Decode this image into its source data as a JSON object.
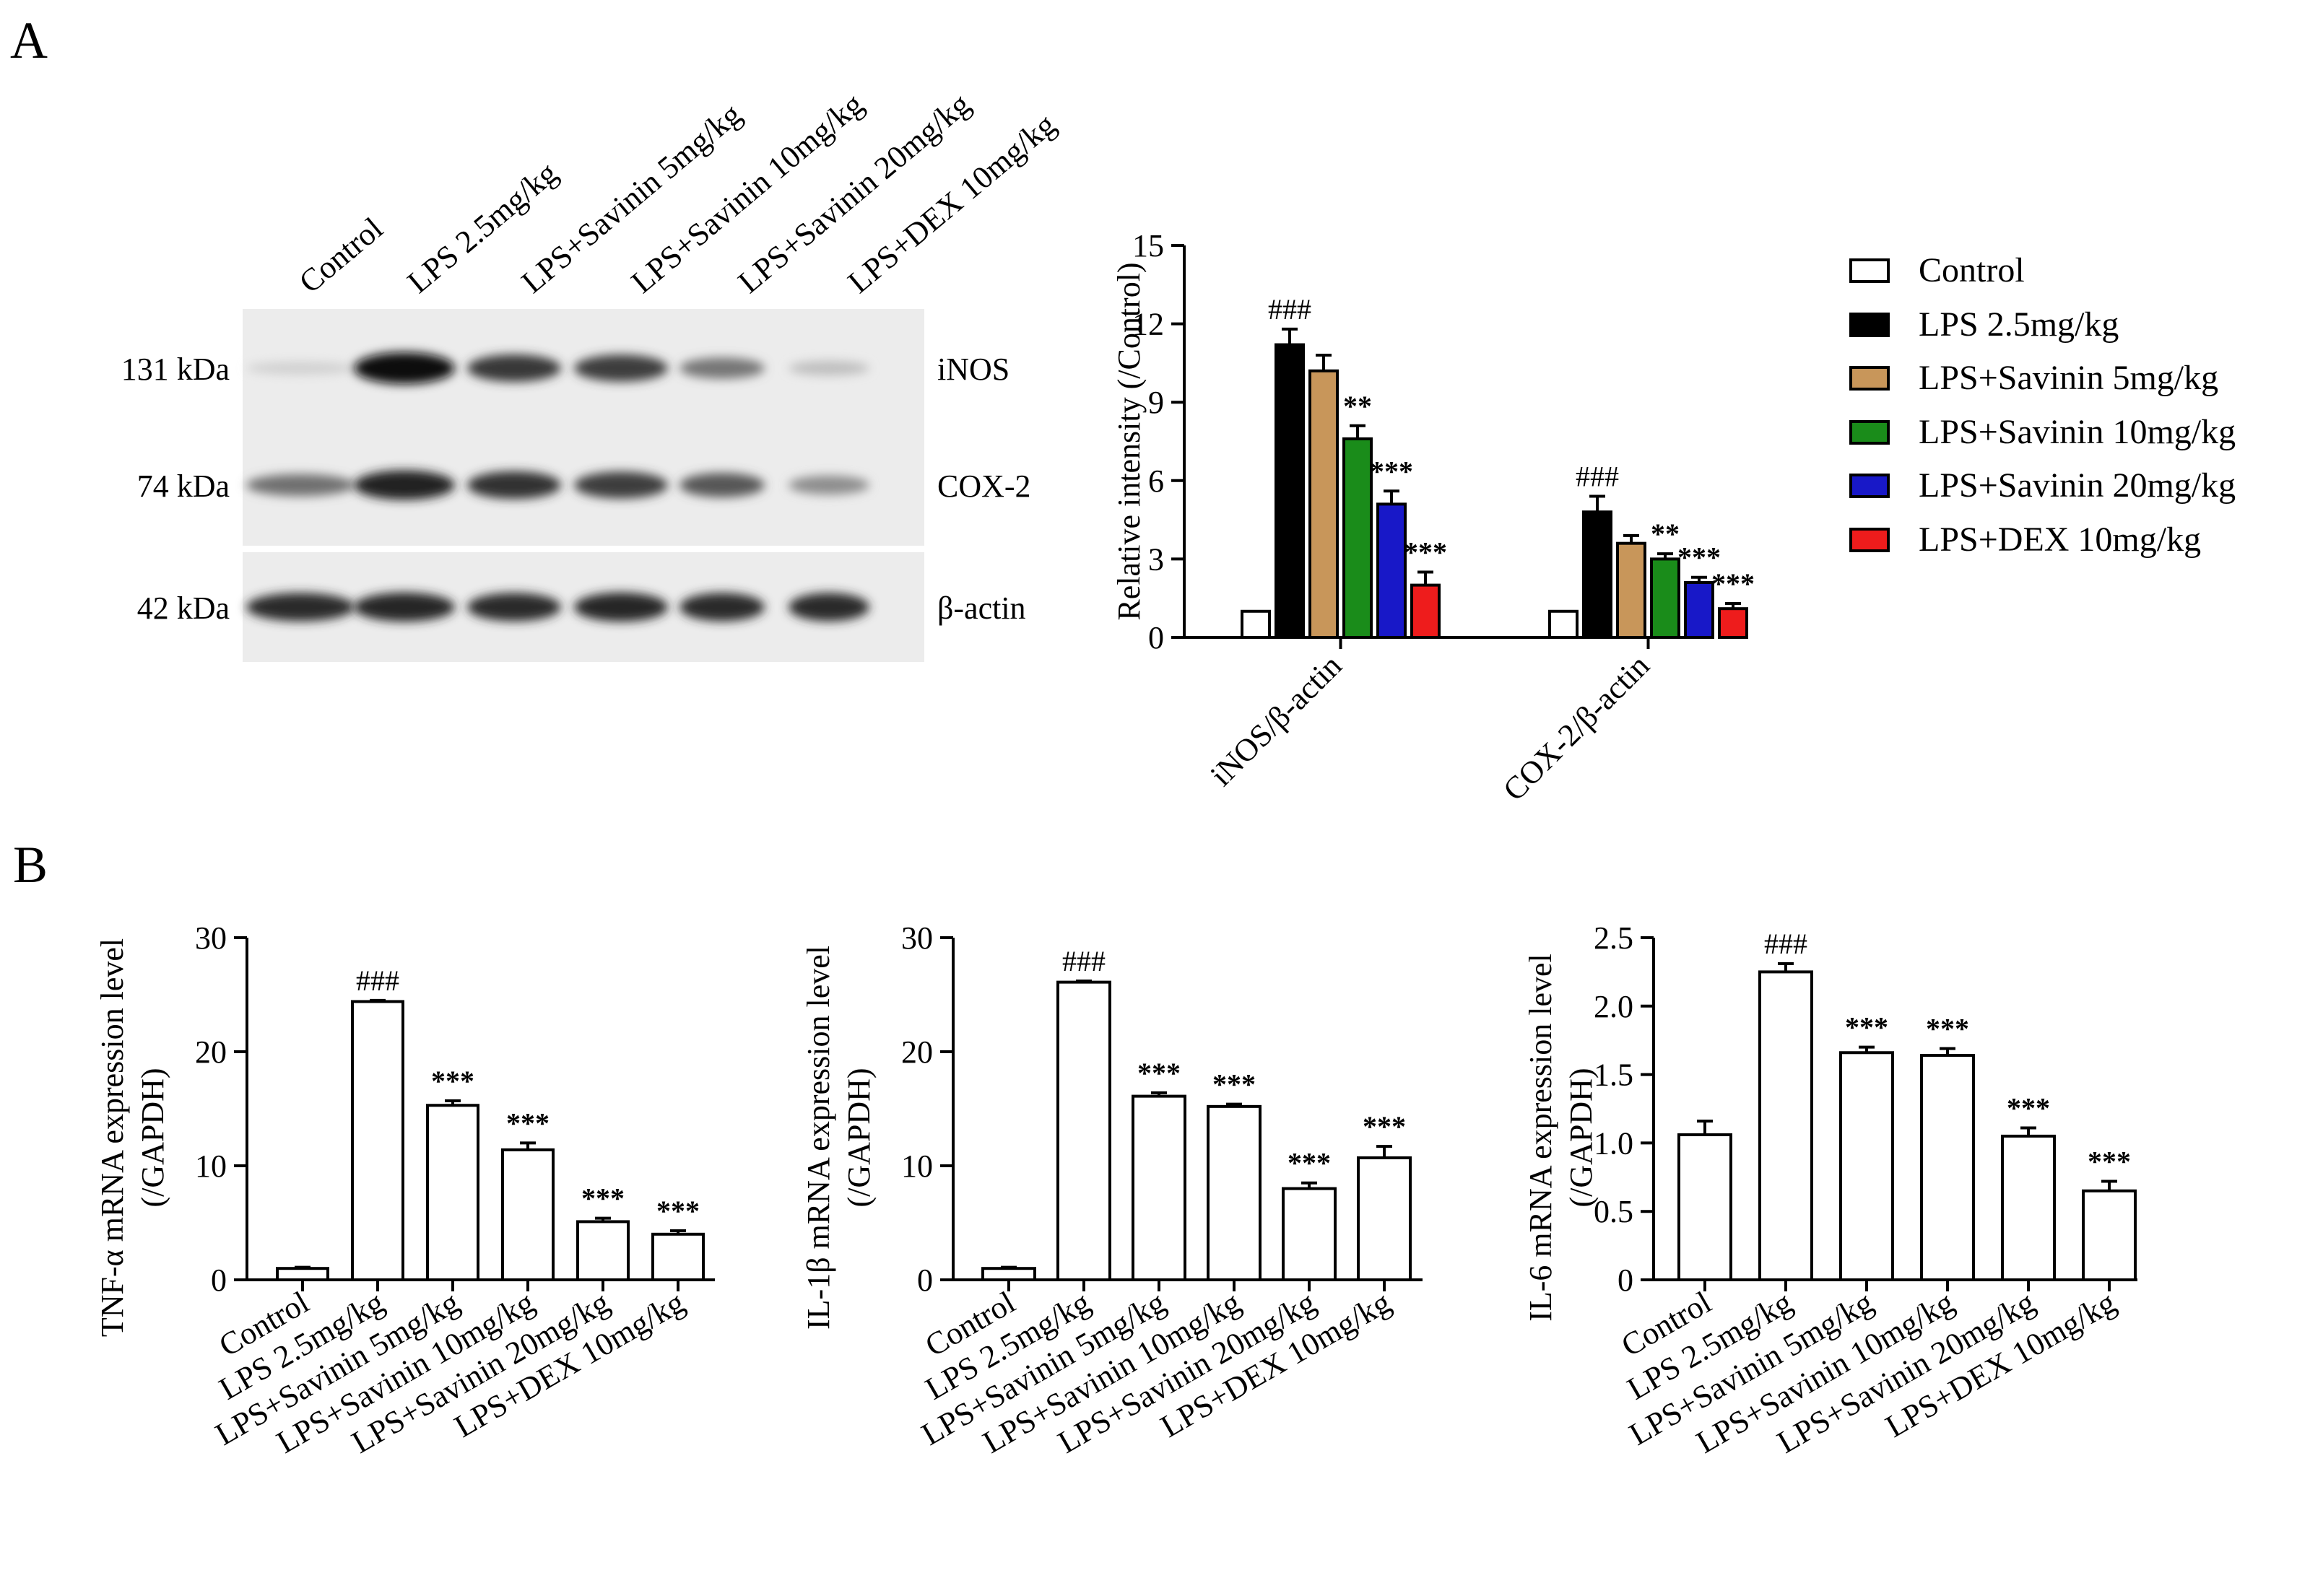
{
  "panels": {
    "a": "A",
    "b": "B"
  },
  "blot": {
    "lanes": [
      "Control",
      "LPS 2.5mg/kg",
      "LPS+Savinin 5mg/kg",
      "LPS+Savinin 10mg/kg",
      "LPS+Savinin 20mg/kg",
      "LPS+DEX 10mg/kg"
    ],
    "rows": [
      {
        "marker": "131 kDa",
        "protein": "iNOS",
        "intensity": [
          0.12,
          1.0,
          0.8,
          0.78,
          0.52,
          0.2
        ]
      },
      {
        "marker": "74 kDa",
        "protein": "COX-2",
        "intensity": [
          0.55,
          0.9,
          0.82,
          0.78,
          0.66,
          0.42
        ]
      },
      {
        "marker": "42 kDa",
        "protein": "β-actin",
        "intensity": [
          0.85,
          0.88,
          0.85,
          0.88,
          0.85,
          0.85
        ]
      }
    ]
  },
  "legend": {
    "entries": [
      "Control",
      "LPS 2.5mg/kg",
      "LPS+Savinin 5mg/kg",
      "LPS+Savinin 10mg/kg",
      "LPS+Savinin 20mg/kg",
      "LPS+DEX 10mg/kg"
    ],
    "colors": [
      "#ffffff",
      "#000000",
      "#c8965a",
      "#1a8c1a",
      "#1818c8",
      "#ee1c1c"
    ]
  },
  "chart_data": [
    {
      "type": "bar",
      "ylabel": "Relative intensity (/Control)",
      "ylim": [
        0,
        15
      ],
      "yticks": [
        "0",
        "3",
        "6",
        "9",
        "12",
        "15"
      ],
      "categories": [
        "iNOS/β-actin",
        "COX-2/β-actin"
      ],
      "series": [
        {
          "name": "Control",
          "values": [
            1.0,
            1.0
          ],
          "err": [
            0,
            0
          ],
          "sig": [
            "",
            ""
          ]
        },
        {
          "name": "LPS 2.5mg/kg",
          "values": [
            11.2,
            4.8
          ],
          "err": [
            0.6,
            0.6
          ],
          "sig": [
            "###",
            "###"
          ]
        },
        {
          "name": "LPS+Savinin 5mg/kg",
          "values": [
            10.2,
            3.6
          ],
          "err": [
            0.6,
            0.3
          ],
          "sig": [
            "",
            ""
          ]
        },
        {
          "name": "LPS+Savinin 10mg/kg",
          "values": [
            7.6,
            3.0
          ],
          "err": [
            0.5,
            0.2
          ],
          "sig": [
            "**",
            "**"
          ]
        },
        {
          "name": "LPS+Savinin 20mg/kg",
          "values": [
            5.1,
            2.1
          ],
          "err": [
            0.5,
            0.2
          ],
          "sig": [
            "***",
            "***"
          ]
        },
        {
          "name": "LPS+DEX 10mg/kg",
          "values": [
            2.0,
            1.1
          ],
          "err": [
            0.5,
            0.2
          ],
          "sig": [
            "***",
            "***"
          ]
        }
      ],
      "legend": "right"
    },
    {
      "type": "bar",
      "ylabel": "TNF-α mRNA expression level",
      "ylabel2": "(/GAPDH)",
      "ylim": [
        0,
        30
      ],
      "yticks": [
        "0",
        "10",
        "20",
        "30"
      ],
      "categories": [
        "Control",
        "LPS 2.5mg/kg",
        "LPS+Savinin 5mg/kg",
        "LPS+Savinin 10mg/kg",
        "LPS+Savinin 20mg/kg",
        "LPS+DEX 10mg/kg"
      ],
      "values": [
        1.0,
        24.4,
        15.3,
        11.4,
        5.1,
        4.0
      ],
      "err": [
        0.1,
        0.1,
        0.4,
        0.6,
        0.3,
        0.3
      ],
      "sig": [
        "",
        "###",
        "***",
        "***",
        "***",
        "***"
      ]
    },
    {
      "type": "bar",
      "ylabel": "IL-1β mRNA expression level",
      "ylabel2": "(/GAPDH)",
      "ylim": [
        0,
        30
      ],
      "yticks": [
        "0",
        "10",
        "20",
        "30"
      ],
      "categories": [
        "Control",
        "LPS 2.5mg/kg",
        "LPS+Savinin 5mg/kg",
        "LPS+Savinin 10mg/kg",
        "LPS+Savinin 20mg/kg",
        "LPS+DEX 10mg/kg"
      ],
      "values": [
        1.0,
        26.1,
        16.1,
        15.2,
        8.0,
        10.7
      ],
      "err": [
        0.1,
        0.1,
        0.3,
        0.2,
        0.5,
        1.0
      ],
      "sig": [
        "",
        "###",
        "***",
        "***",
        "***",
        "***"
      ]
    },
    {
      "type": "bar",
      "ylabel": "IL-6 mRNA expression level",
      "ylabel2": "(/GAPDH)",
      "ylim": [
        0,
        2.5
      ],
      "yticks": [
        "0",
        "0.5",
        "1.0",
        "1.5",
        "2.0",
        "2.5"
      ],
      "categories": [
        "Control",
        "LPS 2.5mg/kg",
        "LPS+Savinin 5mg/kg",
        "LPS+Savinin 10mg/kg",
        "LPS+Savinin 20mg/kg",
        "LPS+DEX 10mg/kg"
      ],
      "values": [
        1.06,
        2.25,
        1.66,
        1.64,
        1.05,
        0.65
      ],
      "err": [
        0.1,
        0.06,
        0.04,
        0.05,
        0.06,
        0.07
      ],
      "sig": [
        "",
        "###",
        "***",
        "***",
        "***",
        "***"
      ]
    }
  ]
}
